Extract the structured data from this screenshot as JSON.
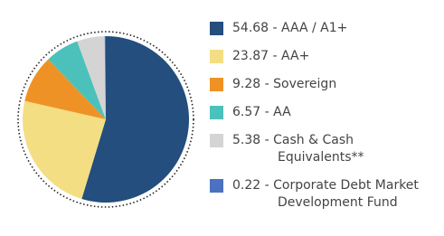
{
  "chart_data": {
    "type": "pie",
    "categories": [
      "54.68 - AAA / A1+",
      "23.87 - AA+",
      "9.28 - Sovereign",
      "6.57 - AA",
      "5.38 - Cash & Cash Equivalents**",
      "0.22 - Corporate Debt Market Development Fund"
    ],
    "values": [
      54.68,
      23.87,
      9.28,
      6.57,
      5.38,
      0.22
    ],
    "colors": [
      "#234e7d",
      "#f3de84",
      "#ef9226",
      "#4cc1bb",
      "#d4d4d4",
      "#4a72c0"
    ]
  }
}
